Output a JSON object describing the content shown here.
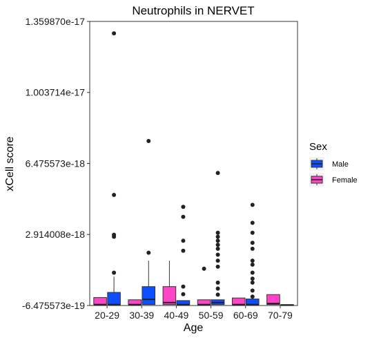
{
  "chart_data": {
    "type": "boxplot",
    "title": "Neutrophils in NERVET",
    "xlabel": "Age",
    "ylabel": "xCell score",
    "categories": [
      "20-29",
      "30-39",
      "40-49",
      "50-59",
      "60-69",
      "70-79"
    ],
    "y_ticks": [
      -6.475573e-19,
      2.914008e-18,
      6.475573e-18,
      1.003714e-17,
      1.35987e-17
    ],
    "y_tick_labels": [
      "-6.475573e-19",
      "2.914008e-18",
      "6.475573e-18",
      "1.003714e-17",
      "1.359870e-17"
    ],
    "ylim": [
      -6.475573e-19,
      1.35987e-17
    ],
    "grid": false,
    "legend": {
      "title": "Sex",
      "position": "right"
    },
    "series": [
      {
        "name": "Female",
        "color": "#FF44C8",
        "boxes": [
          {
            "min": -6e-19,
            "q1": -6e-19,
            "median": -6e-19,
            "q3": -2.5e-19,
            "max": -2.5e-19,
            "outliers": []
          },
          {
            "min": -6e-19,
            "q1": -6e-19,
            "median": -6e-19,
            "q3": -3.6e-19,
            "max": -3.6e-19,
            "outliers": []
          },
          {
            "min": -6e-19,
            "q1": -6e-19,
            "median": -5e-19,
            "q3": 3e-19,
            "max": 1.6e-18,
            "outliers": []
          },
          {
            "min": -6e-19,
            "q1": -6e-19,
            "median": -6e-19,
            "q3": -3.6e-19,
            "max": -3.6e-19,
            "outliers": [
              1.2e-18
            ]
          },
          {
            "min": -6e-19,
            "q1": -6e-19,
            "median": -6e-19,
            "q3": -2.7e-19,
            "max": -2.7e-19,
            "outliers": []
          },
          {
            "min": -6e-19,
            "q1": -6e-19,
            "median": -5.5e-19,
            "q3": -1e-19,
            "max": -1e-19,
            "outliers": []
          }
        ]
      },
      {
        "name": "Male",
        "color": "#0D4FFF",
        "boxes": [
          {
            "min": -6e-19,
            "q1": -6e-19,
            "median": -6e-19,
            "q3": 1e-20,
            "max": 8e-19,
            "outliers": [
              1e-18,
              2.8e-18,
              2.9e-18,
              4.9e-18,
              1.3e-17
            ]
          },
          {
            "min": -6e-19,
            "q1": -6e-19,
            "median": -3.4e-19,
            "q3": 3e-19,
            "max": 1.6e-18,
            "outliers": [
              2e-18,
              7.6e-18
            ]
          },
          {
            "min": -6e-19,
            "q1": -6e-19,
            "median": -6e-19,
            "q3": -4e-19,
            "max": -4e-19,
            "outliers": [
              -8e-20,
              3e-19,
              2.1e-18,
              2.6e-18,
              3.8e-18,
              4.3e-18
            ]
          },
          {
            "min": -6e-19,
            "q1": -6e-19,
            "median": -5e-19,
            "q3": -3.6e-19,
            "max": -3.6e-19,
            "outliers": [
              -1e-19,
              2e-19,
              5e-19,
              1.3e-18,
              1.6e-18,
              1.9e-18,
              2.2e-18,
              2.4e-18,
              2.6e-18,
              2.8e-18,
              3e-18,
              6e-18
            ]
          },
          {
            "min": -6e-19,
            "q1": -6e-19,
            "median": -6e-19,
            "q3": -3.2e-19,
            "max": -3.2e-19,
            "outliers": [
              -2e-19,
              1e-19,
              5e-19,
              7e-19,
              1e-18,
              1.4e-18,
              1.6e-18,
              2.2e-18,
              2.5e-18,
              3e-18,
              3.5e-18,
              4.4e-18
            ]
          },
          {
            "min": -6.5e-19,
            "q1": -6.5e-19,
            "median": -6.3e-19,
            "q3": -6e-19,
            "max": -6e-19,
            "outliers": []
          }
        ]
      }
    ]
  }
}
